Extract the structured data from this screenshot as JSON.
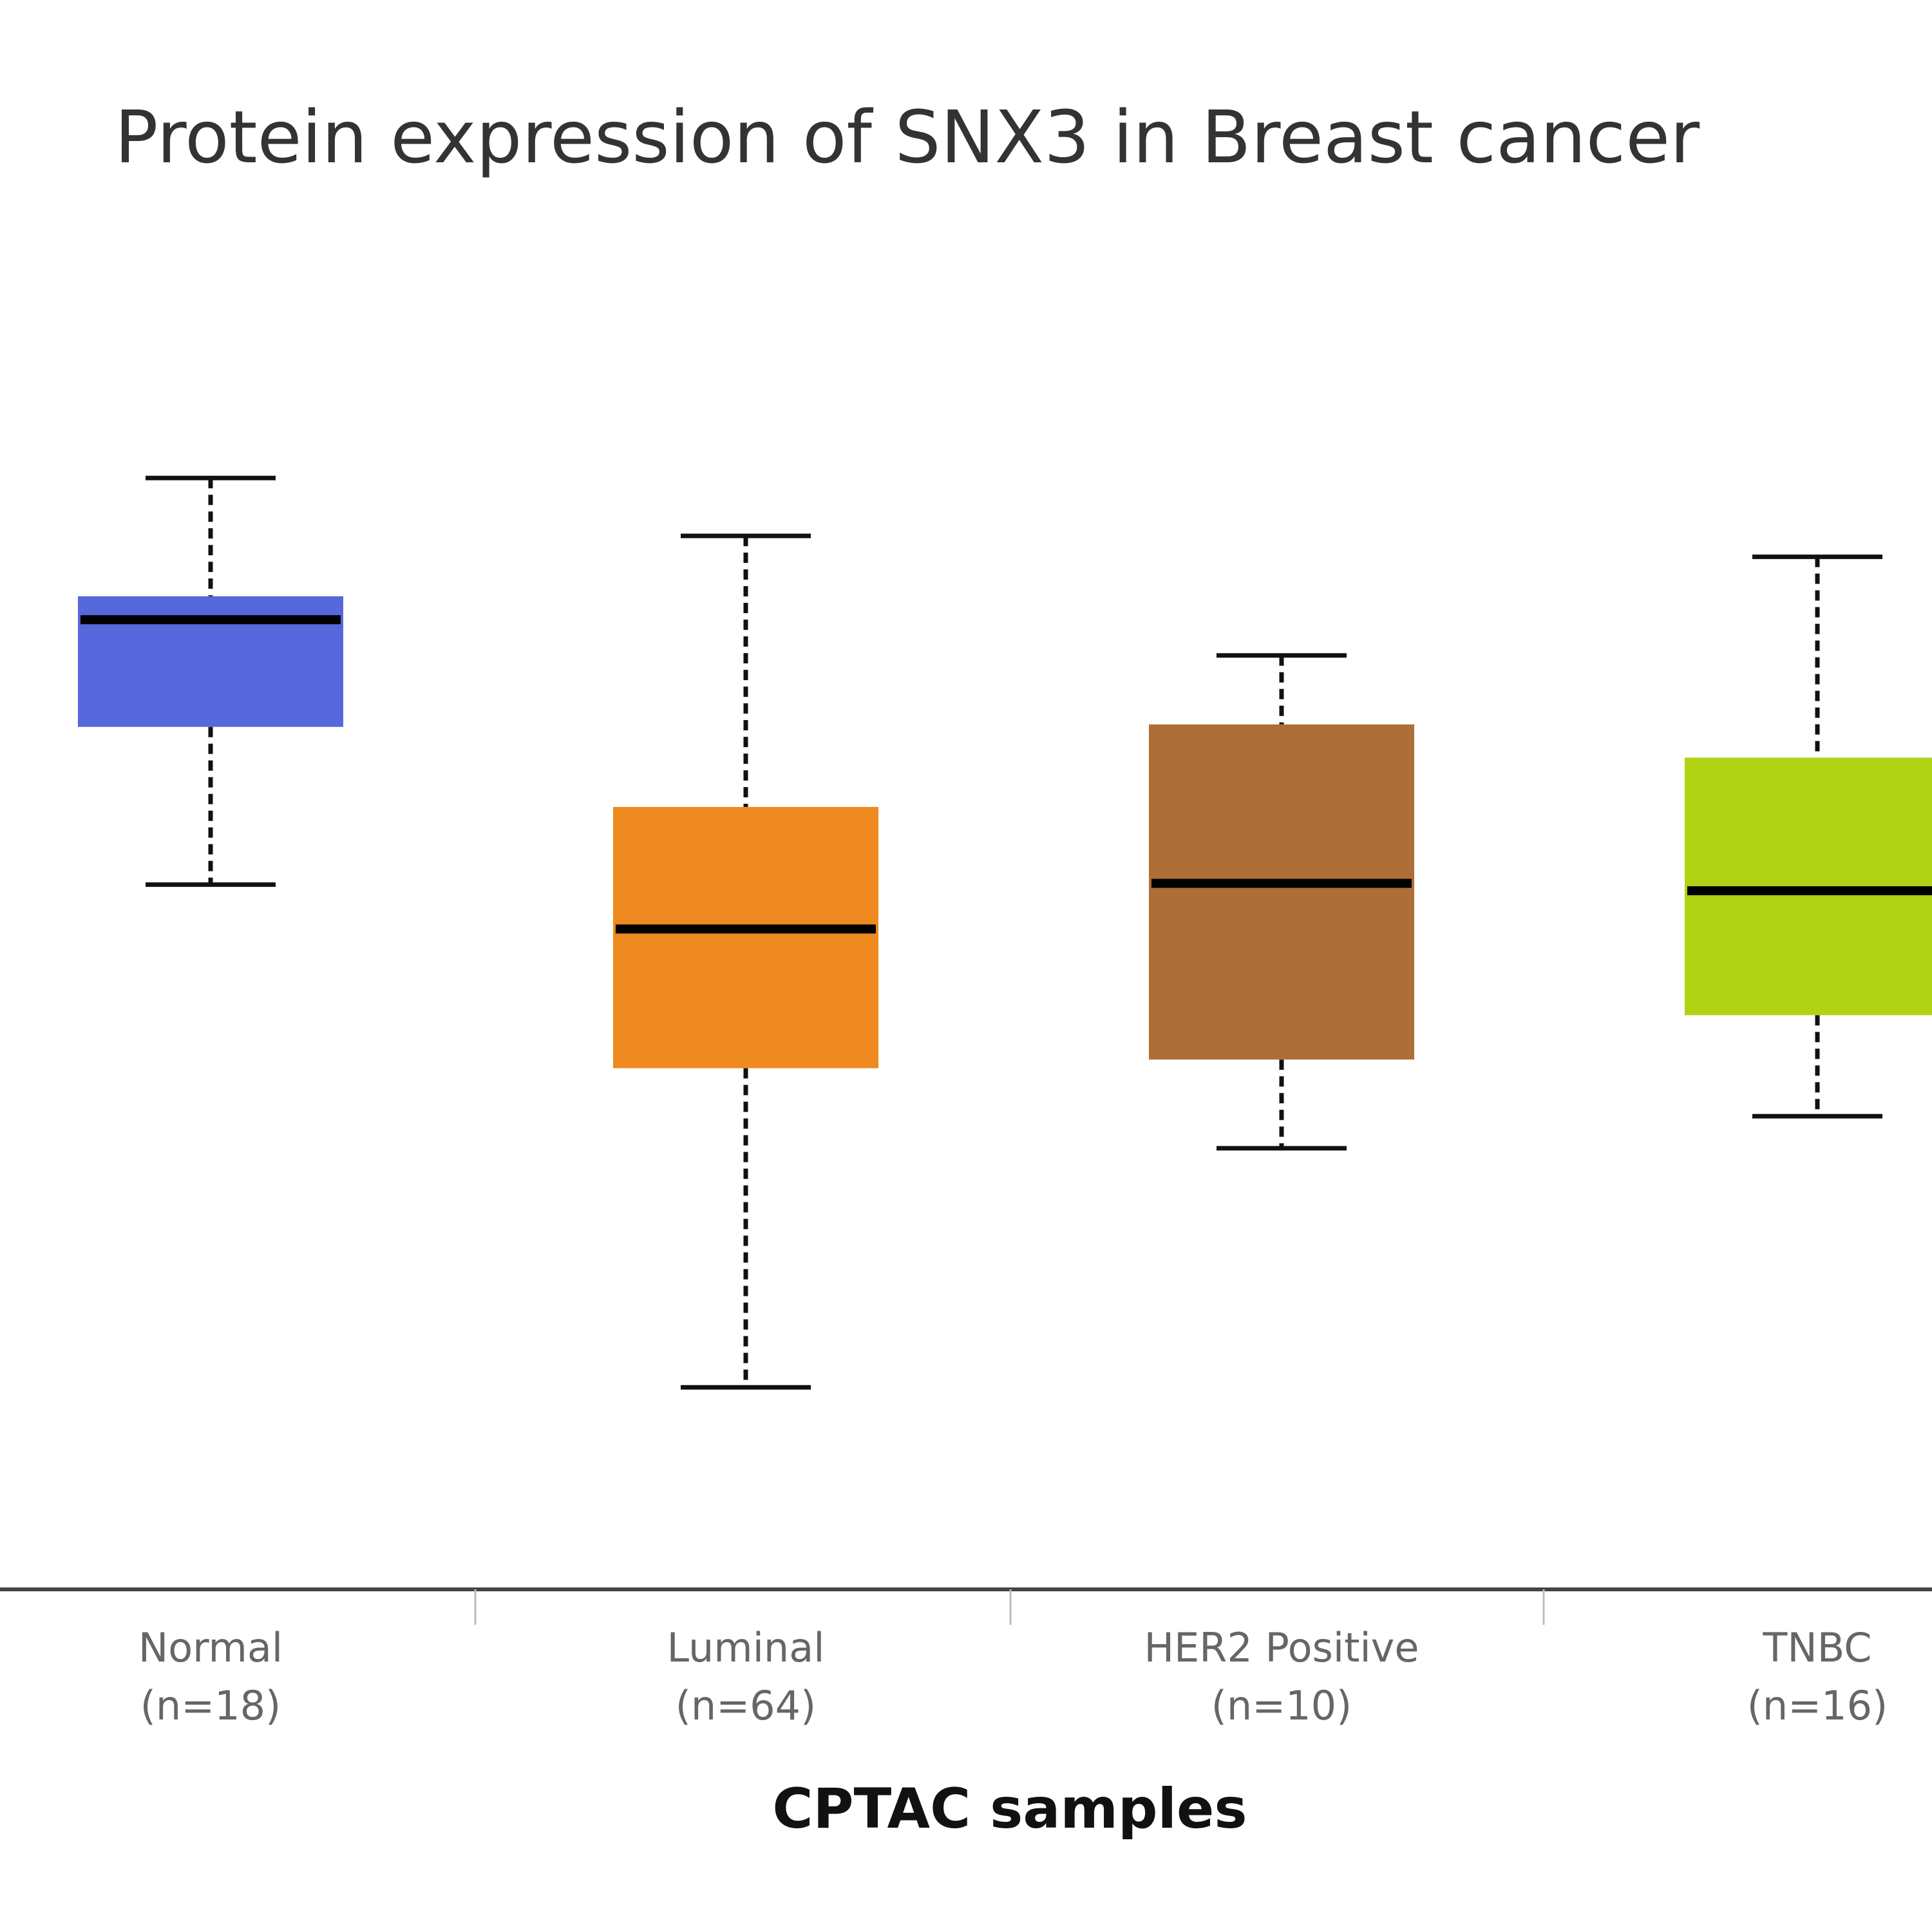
{
  "chart_data": {
    "type": "box",
    "title": "Protein expression of SNX3 in Breast cancer",
    "xlabel": "CPTAC samples",
    "ylabel": "",
    "ylim": [
      0,
      12.9
    ],
    "grid": false,
    "legend": "none",
    "categories": [
      {
        "label": "Normal",
        "n_label": "(n=18)",
        "color": "#5767dc"
      },
      {
        "label": "Luminal",
        "n_label": "(n=64)",
        "color": "#ee8a1f"
      },
      {
        "label": "HER2 Positive",
        "n_label": "(n=10)",
        "color": "#ae6e37"
      },
      {
        "label": "TNBC",
        "n_label": "(n=16)",
        "color": "#b0d314"
      }
    ],
    "series": [
      {
        "name": "Normal",
        "min": 5.72,
        "q1": 7.0,
        "median": 7.87,
        "q3": 8.06,
        "max": 9.02
      },
      {
        "name": "Luminal",
        "min": 1.64,
        "q1": 4.23,
        "median": 5.36,
        "q3": 6.35,
        "max": 8.55
      },
      {
        "name": "HER2 Positive",
        "min": 3.58,
        "q1": 4.3,
        "median": 5.73,
        "q3": 7.02,
        "max": 7.58
      },
      {
        "name": "TNBC",
        "min": 3.84,
        "q1": 4.66,
        "median": 5.67,
        "q3": 6.75,
        "max": 8.38
      }
    ]
  }
}
